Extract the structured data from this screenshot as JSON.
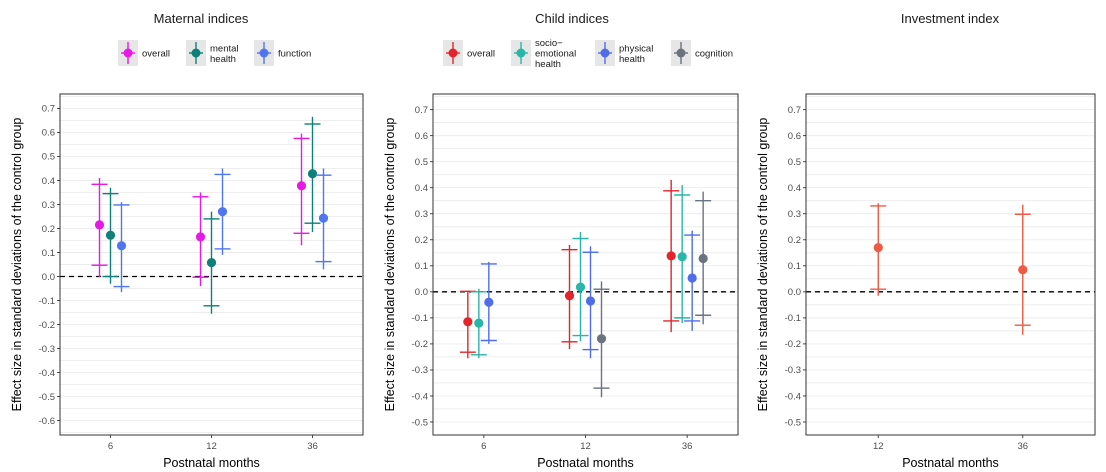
{
  "chart_data": [
    {
      "type": "scatter",
      "title": "Maternal indices",
      "xlabel": "Postnatal months",
      "ylabel": "Effect size in standard deviations of the control group",
      "categories": [
        "6",
        "12",
        "36"
      ],
      "ylim": [
        -0.66,
        0.76
      ],
      "y_ticks": [
        -0.6,
        -0.5,
        -0.4,
        -0.3,
        -0.2,
        -0.1,
        0.0,
        0.1,
        0.2,
        0.3,
        0.4,
        0.5,
        0.6,
        0.7
      ],
      "y_tick_labels": [
        "-0.6",
        "-0.5",
        "-0.4",
        "-0.3",
        "-0.2",
        "-0.1",
        "0.0",
        "0.1",
        "0.2",
        "0.3",
        "0.4",
        "0.5",
        "0.6",
        "0.7"
      ],
      "reference_line": 0,
      "grid": true,
      "legend_position": "top",
      "series": [
        {
          "name": "overall",
          "color": "#e619e6",
          "values": [
            0.215,
            0.165,
            0.378
          ],
          "ci_low": [
            0.047,
            -0.003,
            0.18
          ],
          "ci_high": [
            0.384,
            0.332,
            0.575
          ],
          "whisker_low": [
            -0.003,
            -0.04,
            0.13
          ],
          "whisker_high": [
            0.41,
            0.35,
            0.595
          ]
        },
        {
          "name": "mental\nhealth",
          "color": "#0f7f79",
          "values": [
            0.172,
            0.058,
            0.428
          ],
          "ci_low": [
            0.0,
            -0.122,
            0.222
          ],
          "ci_high": [
            0.345,
            0.24,
            0.635
          ],
          "whisker_low": [
            -0.03,
            -0.155,
            0.185
          ],
          "whisker_high": [
            0.37,
            0.27,
            0.665
          ]
        },
        {
          "name": "function",
          "color": "#4f75f0",
          "values": [
            0.128,
            0.27,
            0.243
          ],
          "ci_low": [
            -0.042,
            0.115,
            0.062
          ],
          "ci_high": [
            0.298,
            0.425,
            0.422
          ],
          "whisker_low": [
            -0.065,
            0.09,
            0.03
          ],
          "whisker_high": [
            0.31,
            0.45,
            0.45
          ]
        }
      ]
    },
    {
      "type": "scatter",
      "title": "Child indices",
      "xlabel": "Postnatal months",
      "ylabel": "Effect size in standard deviations of the control group",
      "categories": [
        "6",
        "12",
        "36"
      ],
      "ylim": [
        -0.55,
        0.76
      ],
      "y_ticks": [
        -0.5,
        -0.4,
        -0.3,
        -0.2,
        -0.1,
        0.0,
        0.1,
        0.2,
        0.3,
        0.4,
        0.5,
        0.6,
        0.7
      ],
      "y_tick_labels": [
        "-0.5",
        "-0.4",
        "-0.3",
        "-0.2",
        "-0.1",
        "0.0",
        "0.1",
        "0.2",
        "0.3",
        "0.4",
        "0.5",
        "0.6",
        "0.7"
      ],
      "reference_line": 0,
      "grid": true,
      "legend_position": "top",
      "series": [
        {
          "name": "overall",
          "color": "#e4242a",
          "values": [
            -0.115,
            -0.015,
            0.138
          ],
          "ci_low": [
            -0.232,
            -0.192,
            -0.112
          ],
          "ci_high": [
            0.002,
            0.162,
            0.388
          ],
          "whisker_low": [
            -0.255,
            -0.22,
            -0.155
          ],
          "whisker_high": [
            0.005,
            0.18,
            0.43
          ]
        },
        {
          "name": "socio−\nemotional\nhealth",
          "color": "#29b5a8",
          "values": [
            -0.12,
            0.018,
            0.135
          ],
          "ci_low": [
            -0.242,
            -0.168,
            -0.1
          ],
          "ci_high": [
            0.0,
            0.205,
            0.372
          ],
          "whisker_low": [
            -0.255,
            -0.19,
            -0.12
          ],
          "whisker_high": [
            0.012,
            0.23,
            0.41
          ]
        },
        {
          "name": "physical\nhealth",
          "color": "#4f6de8",
          "values": [
            -0.04,
            -0.035,
            0.053
          ],
          "ci_low": [
            -0.187,
            -0.222,
            -0.112
          ],
          "ci_high": [
            0.107,
            0.152,
            0.218
          ],
          "whisker_low": [
            -0.2,
            -0.255,
            -0.15
          ],
          "whisker_high": [
            0.115,
            0.175,
            0.235
          ]
        },
        {
          "name": "cognition",
          "color": "#6b7280",
          "values": [
            null,
            -0.18,
            0.128
          ],
          "ci_low": [
            null,
            -0.37,
            -0.09
          ],
          "ci_high": [
            null,
            0.01,
            0.35
          ],
          "whisker_low": [
            null,
            -0.405,
            -0.125
          ],
          "whisker_high": [
            null,
            0.04,
            0.385
          ]
        }
      ]
    },
    {
      "type": "scatter",
      "title": "Investment index",
      "xlabel": "Postnatal months",
      "ylabel": "Effect size in standard deviations of the control group",
      "categories": [
        "12",
        "36"
      ],
      "ylim": [
        -0.55,
        0.76
      ],
      "y_ticks": [
        -0.5,
        -0.4,
        -0.3,
        -0.2,
        -0.1,
        0.0,
        0.1,
        0.2,
        0.3,
        0.4,
        0.5,
        0.6,
        0.7
      ],
      "y_tick_labels": [
        "-0.5",
        "-0.4",
        "-0.3",
        "-0.2",
        "-0.1",
        "0.0",
        "0.1",
        "0.2",
        "0.3",
        "0.4",
        "0.5",
        "0.6",
        "0.7"
      ],
      "reference_line": 0,
      "grid": true,
      "legend_position": "none",
      "series": [
        {
          "name": "",
          "color": "#ee5a45",
          "values": [
            0.17,
            0.085
          ],
          "ci_low": [
            0.01,
            -0.128
          ],
          "ci_high": [
            0.33,
            0.298
          ],
          "whisker_low": [
            -0.015,
            -0.165
          ],
          "whisker_high": [
            0.34,
            0.335
          ]
        }
      ]
    }
  ]
}
